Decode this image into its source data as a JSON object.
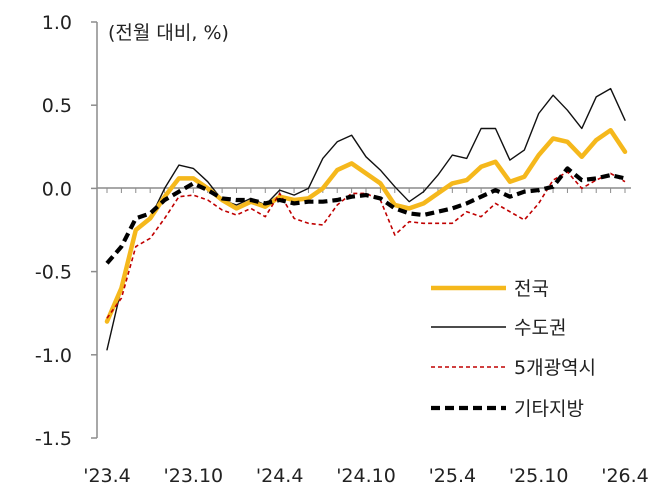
{
  "chart_data": {
    "type": "line",
    "unit_label": "(전월 대비, %)",
    "ylim": [
      -1.5,
      1.0
    ],
    "yticks": [
      {
        "value": 1.0,
        "label": "1.0"
      },
      {
        "value": 0.5,
        "label": "0.5"
      },
      {
        "value": 0.0,
        "label": "0.0"
      },
      {
        "value": -0.5,
        "label": "-0.5"
      },
      {
        "value": -1.0,
        "label": "-1.0"
      },
      {
        "value": -1.5,
        "label": "-1.5"
      }
    ],
    "xticks": [
      {
        "index": 0,
        "label": "'23.4"
      },
      {
        "index": 6,
        "label": "'23.10"
      },
      {
        "index": 12,
        "label": "'24.4"
      },
      {
        "index": 18,
        "label": "'24.10"
      },
      {
        "index": 24,
        "label": "'25.4"
      },
      {
        "index": 30,
        "label": "'25.10"
      },
      {
        "index": 36,
        "label": "'26.4"
      }
    ],
    "x_count": 37,
    "legend_position": "bottom-right",
    "grid": false,
    "series": [
      {
        "name": "전국",
        "color": "#F5B81C",
        "style": "solid-thick",
        "values": [
          -0.8,
          -0.6,
          -0.25,
          -0.18,
          -0.05,
          0.06,
          0.06,
          0.0,
          -0.07,
          -0.12,
          -0.08,
          -0.11,
          -0.05,
          -0.07,
          -0.06,
          0.0,
          0.11,
          0.15,
          0.09,
          0.03,
          -0.1,
          -0.12,
          -0.09,
          -0.03,
          0.03,
          0.05,
          0.13,
          0.16,
          0.04,
          0.07,
          0.2,
          0.3,
          0.28,
          0.19,
          0.29,
          0.35,
          0.22
        ]
      },
      {
        "name": "수도권",
        "color": "#111111",
        "style": "solid-thin",
        "values": [
          -0.97,
          -0.6,
          -0.25,
          -0.18,
          0.0,
          0.14,
          0.12,
          0.04,
          -0.07,
          -0.1,
          -0.06,
          -0.1,
          -0.01,
          -0.04,
          0.0,
          0.18,
          0.28,
          0.32,
          0.19,
          0.11,
          0.01,
          -0.08,
          -0.02,
          0.08,
          0.2,
          0.18,
          0.36,
          0.36,
          0.17,
          0.23,
          0.45,
          0.56,
          0.47,
          0.36,
          0.55,
          0.6,
          0.41
        ]
      },
      {
        "name": "5개광역시",
        "color": "#C00000",
        "style": "dotted",
        "values": [
          -0.78,
          -0.66,
          -0.35,
          -0.3,
          -0.18,
          -0.05,
          -0.04,
          -0.07,
          -0.13,
          -0.16,
          -0.12,
          -0.17,
          -0.03,
          -0.18,
          -0.21,
          -0.22,
          -0.1,
          -0.03,
          -0.03,
          -0.07,
          -0.28,
          -0.2,
          -0.21,
          -0.21,
          -0.21,
          -0.14,
          -0.17,
          -0.09,
          -0.14,
          -0.19,
          -0.09,
          0.05,
          0.1,
          0.0,
          0.05,
          0.09,
          0.04
        ]
      },
      {
        "name": "기타지방",
        "color": "#000000",
        "style": "dashed-thick",
        "values": [
          -0.45,
          -0.35,
          -0.18,
          -0.15,
          -0.07,
          -0.02,
          0.03,
          -0.01,
          -0.06,
          -0.07,
          -0.07,
          -0.09,
          -0.07,
          -0.09,
          -0.08,
          -0.08,
          -0.07,
          -0.05,
          -0.04,
          -0.06,
          -0.12,
          -0.15,
          -0.16,
          -0.14,
          -0.12,
          -0.09,
          -0.05,
          -0.01,
          -0.05,
          -0.02,
          -0.01,
          0.01,
          0.12,
          0.05,
          0.06,
          0.08,
          0.06
        ]
      }
    ]
  }
}
